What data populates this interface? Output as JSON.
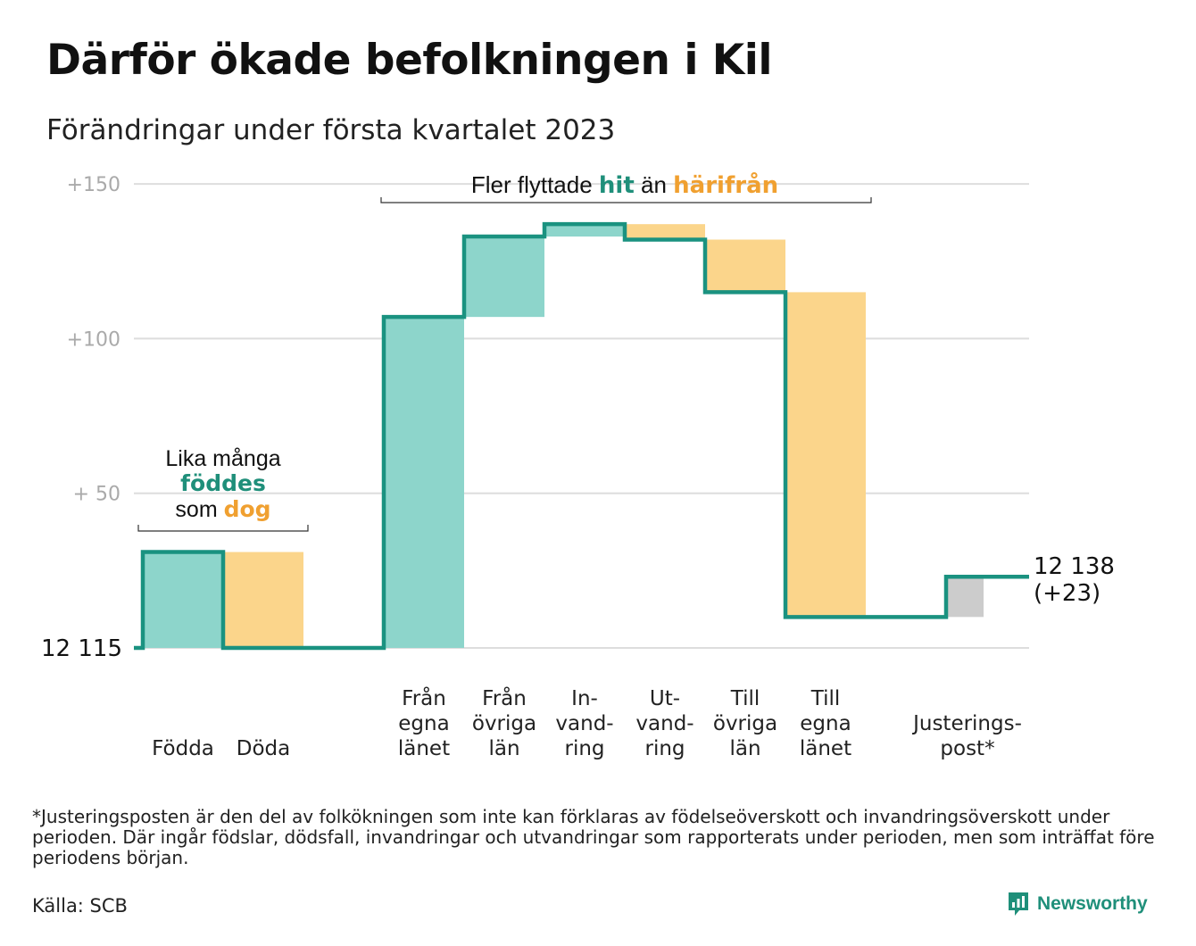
{
  "title": "Därför ökade befolkningen i Kil",
  "subtitle": "Förändringar under första kvartalet 2023",
  "chart_data": {
    "type": "waterfall",
    "baseline_label": "12 115",
    "y_ticks": [
      {
        "value": 150,
        "label": "+150"
      },
      {
        "value": 100,
        "label": "+100"
      },
      {
        "value": 50,
        "label": "+ 50"
      }
    ],
    "ylim": [
      0,
      150
    ],
    "grid": true,
    "steps": [
      {
        "label_lines": [
          "Födda"
        ],
        "change": 31,
        "kind": "in"
      },
      {
        "label_lines": [
          "Döda"
        ],
        "change": -31,
        "kind": "out"
      },
      {
        "label_lines": [
          "Från",
          "egna",
          "länet"
        ],
        "change": 107,
        "kind": "in"
      },
      {
        "label_lines": [
          "Från",
          "övriga",
          "län"
        ],
        "change": 26,
        "kind": "in"
      },
      {
        "label_lines": [
          "In-",
          "vand-",
          "ring"
        ],
        "change": 4,
        "kind": "in"
      },
      {
        "label_lines": [
          "Ut-",
          "vand-",
          "ring"
        ],
        "change": -5,
        "kind": "out"
      },
      {
        "label_lines": [
          "Till",
          "övriga",
          "län"
        ],
        "change": -17,
        "kind": "out"
      },
      {
        "label_lines": [
          "Till",
          "egna",
          "länet"
        ],
        "change": -105,
        "kind": "out"
      },
      {
        "label_lines": [
          "Justerings-",
          "post*"
        ],
        "change": 13,
        "kind": "adjust"
      }
    ],
    "end_labels": [
      "12 138",
      "(+23)"
    ],
    "annotations": {
      "births": {
        "line1": "Lika många",
        "line2_hl": "föddes",
        "line3_pre": "som ",
        "line3_hl": "dog"
      },
      "moves": {
        "pre": "Fler flyttade ",
        "hl1": "hit",
        "mid": " än ",
        "hl2": "härifrån"
      }
    },
    "colors": {
      "in": "#8dd5cb",
      "out": "#fbd58b",
      "adjust": "#cccccc",
      "line": "#1a9280",
      "teal_text": "#1f8f7a",
      "orange_text": "#f0a030",
      "grid": "#dddddd",
      "tick": "#aaaaaa"
    }
  },
  "footnote": "*Justeringsposten är den del av folkökningen som inte kan förklaras av födelseöverskott och invandringsöverskott under perioden. Där ingår födslar, dödsfall, invandringar och utvandringar som rapporterats under perioden, men som inträffat före periodens början.",
  "source": "Källa: SCB",
  "logo": {
    "text": "Newsworthy",
    "icon": "chart-bubble-icon"
  }
}
